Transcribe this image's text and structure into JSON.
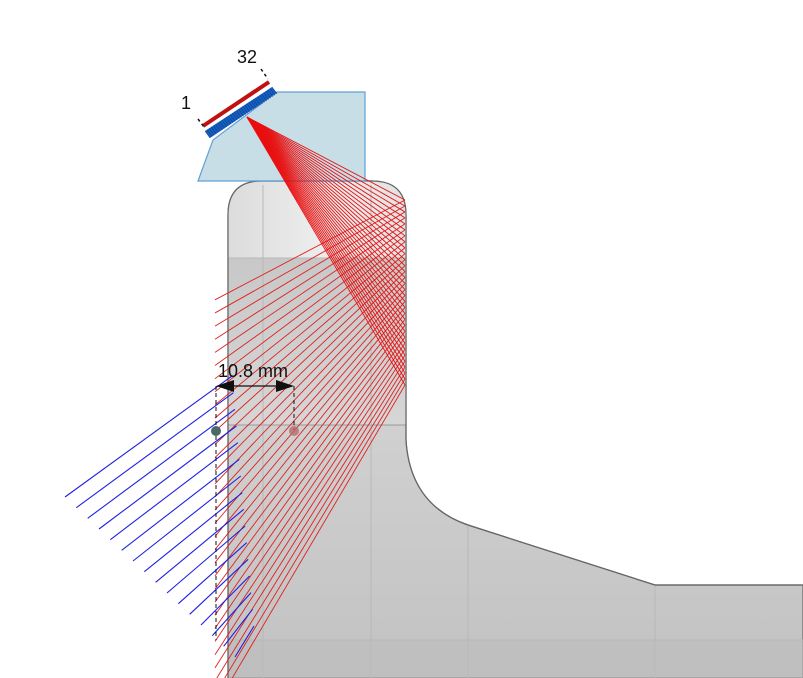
{
  "labels": {
    "element_first": "1",
    "element_last": "32",
    "offset_dimension": "10.8 mm"
  },
  "probe": {
    "element_count": 32
  },
  "colors": {
    "wedge": "#c5dde6",
    "array": "#1560c0",
    "array_backing": "#c01010",
    "incident_rays": "#e81010",
    "reflected_rays": "#e02020",
    "skip_rays": "#2020e0",
    "part_light": "#e2e2e2",
    "part_dark": "#c4c4c4"
  }
}
